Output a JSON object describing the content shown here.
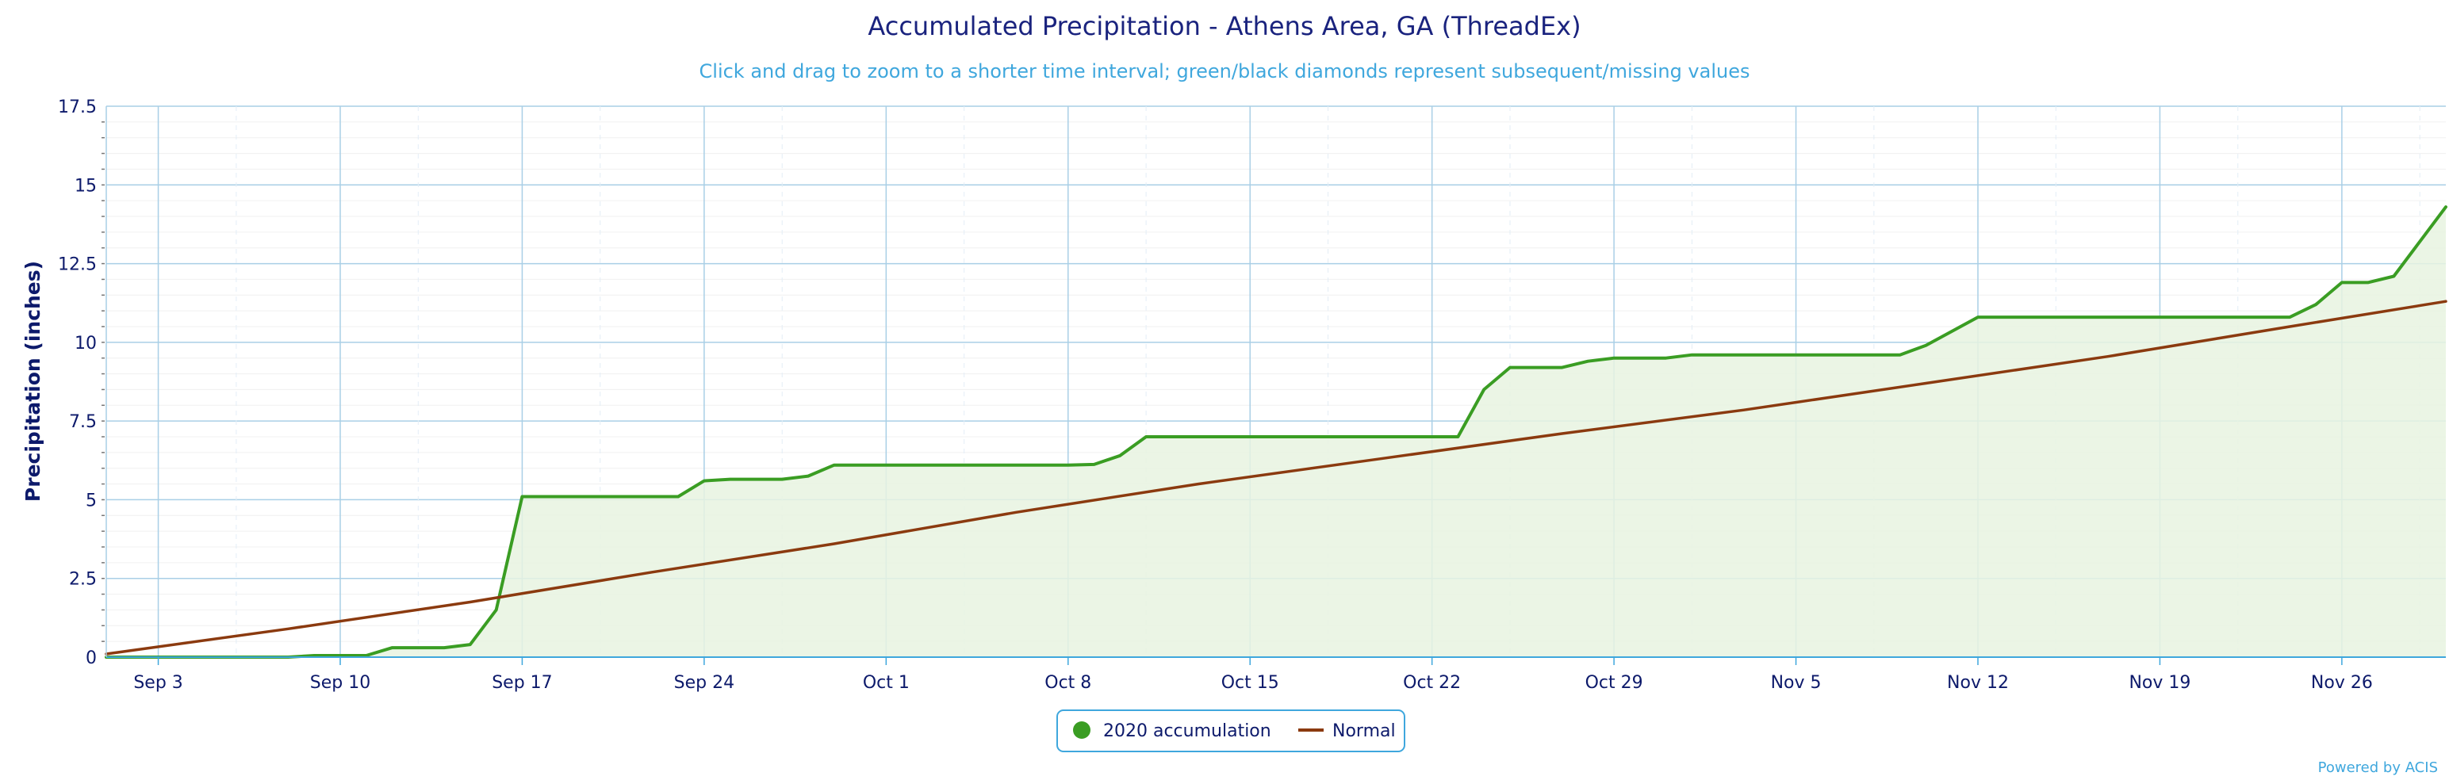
{
  "chart_data": {
    "type": "area",
    "title": "Accumulated Precipitation - Athens Area, GA (ThreadEx)",
    "subtitle": "Click and drag to zoom to a shorter time interval; green/black diamonds represent subsequent/missing values",
    "ylabel": "Precipitation (inches)",
    "xlabel": "",
    "ylim": [
      0,
      17.5
    ],
    "xlim": [
      "2020-09-01",
      "2020-11-30"
    ],
    "y_ticks": [
      "0",
      "2.5",
      "5",
      "7.5",
      "10",
      "12.5",
      "15",
      "17.5"
    ],
    "x_ticks": [
      {
        "label": "Sep 3",
        "date": "2020-09-03"
      },
      {
        "label": "Sep 10",
        "date": "2020-09-10"
      },
      {
        "label": "Sep 17",
        "date": "2020-09-17"
      },
      {
        "label": "Sep 24",
        "date": "2020-09-24"
      },
      {
        "label": "Oct 1",
        "date": "2020-10-01"
      },
      {
        "label": "Oct 8",
        "date": "2020-10-08"
      },
      {
        "label": "Oct 15",
        "date": "2020-10-15"
      },
      {
        "label": "Oct 22",
        "date": "2020-10-22"
      },
      {
        "label": "Oct 29",
        "date": "2020-10-29"
      },
      {
        "label": "Nov 5",
        "date": "2020-11-05"
      },
      {
        "label": "Nov 12",
        "date": "2020-11-12"
      },
      {
        "label": "Nov 19",
        "date": "2020-11-19"
      },
      {
        "label": "Nov 26",
        "date": "2020-11-26"
      }
    ],
    "grid": true,
    "legend_position": "bottom-center",
    "series": [
      {
        "name": "2020 accumulation",
        "color": "#3a9d23",
        "fill": "#e8f3e0",
        "points": [
          [
            "2020-09-01",
            0
          ],
          [
            "2020-09-08",
            0
          ],
          [
            "2020-09-09",
            0.05
          ],
          [
            "2020-09-11",
            0.05
          ],
          [
            "2020-09-12",
            0.3
          ],
          [
            "2020-09-14",
            0.3
          ],
          [
            "2020-09-15",
            0.4
          ],
          [
            "2020-09-16",
            1.5
          ],
          [
            "2020-09-17",
            5.1
          ],
          [
            "2020-09-23",
            5.1
          ],
          [
            "2020-09-24",
            5.6
          ],
          [
            "2020-09-25",
            5.65
          ],
          [
            "2020-09-27",
            5.65
          ],
          [
            "2020-09-28",
            5.75
          ],
          [
            "2020-09-29",
            6.1
          ],
          [
            "2020-10-08",
            6.1
          ],
          [
            "2020-10-09",
            6.12
          ],
          [
            "2020-10-10",
            6.4
          ],
          [
            "2020-10-11",
            7.0
          ],
          [
            "2020-10-23",
            7.0
          ],
          [
            "2020-10-24",
            8.5
          ],
          [
            "2020-10-25",
            9.2
          ],
          [
            "2020-10-27",
            9.2
          ],
          [
            "2020-10-28",
            9.4
          ],
          [
            "2020-10-29",
            9.5
          ],
          [
            "2020-10-31",
            9.5
          ],
          [
            "2020-11-01",
            9.6
          ],
          [
            "2020-11-09",
            9.6
          ],
          [
            "2020-11-10",
            9.9
          ],
          [
            "2020-11-12",
            10.8
          ],
          [
            "2020-11-24",
            10.8
          ],
          [
            "2020-11-25",
            11.2
          ],
          [
            "2020-11-26",
            11.9
          ],
          [
            "2020-11-27",
            11.9
          ],
          [
            "2020-11-28",
            12.1
          ],
          [
            "2020-11-30",
            14.3
          ]
        ]
      },
      {
        "name": "Normal",
        "color": "#8b3a0f",
        "points": [
          [
            "2020-09-01",
            0.1
          ],
          [
            "2020-09-08",
            0.9
          ],
          [
            "2020-09-15",
            1.75
          ],
          [
            "2020-09-22",
            2.7
          ],
          [
            "2020-09-29",
            3.6
          ],
          [
            "2020-10-06",
            4.6
          ],
          [
            "2020-10-13",
            5.5
          ],
          [
            "2020-10-20",
            6.3
          ],
          [
            "2020-10-27",
            7.1
          ],
          [
            "2020-11-03",
            7.85
          ],
          [
            "2020-11-10",
            8.7
          ],
          [
            "2020-11-17",
            9.55
          ],
          [
            "2020-11-24",
            10.5
          ],
          [
            "2020-11-30",
            11.3
          ]
        ]
      }
    ],
    "credit": "Powered by ACIS"
  }
}
